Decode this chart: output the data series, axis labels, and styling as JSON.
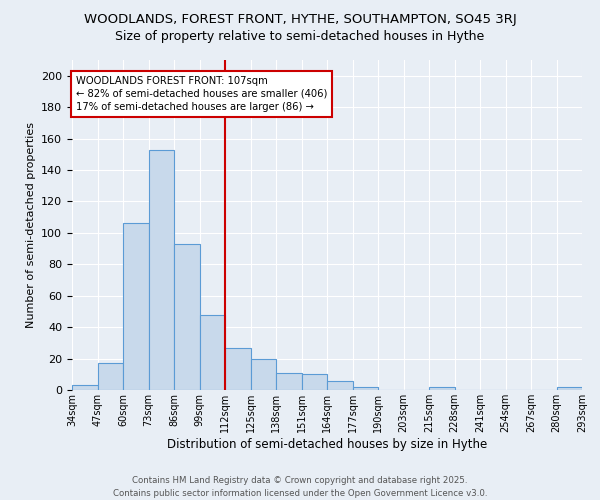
{
  "title": "WOODLANDS, FOREST FRONT, HYTHE, SOUTHAMPTON, SO45 3RJ",
  "subtitle": "Size of property relative to semi-detached houses in Hythe",
  "xlabel": "Distribution of semi-detached houses by size in Hythe",
  "ylabel": "Number of semi-detached properties",
  "footnote": "Contains HM Land Registry data © Crown copyright and database right 2025.\nContains public sector information licensed under the Open Government Licence v3.0.",
  "bin_labels": [
    "34sqm",
    "47sqm",
    "60sqm",
    "73sqm",
    "86sqm",
    "99sqm",
    "112sqm",
    "125sqm",
    "138sqm",
    "151sqm",
    "164sqm",
    "177sqm",
    "190sqm",
    "203sqm",
    "215sqm",
    "228sqm",
    "241sqm",
    "254sqm",
    "267sqm",
    "280sqm",
    "293sqm"
  ],
  "bar_values": [
    3,
    17,
    106,
    153,
    93,
    48,
    27,
    20,
    11,
    10,
    6,
    2,
    0,
    0,
    2,
    0,
    0,
    0,
    0,
    2
  ],
  "bar_color": "#c8d9eb",
  "bar_edge_color": "#5b9bd5",
  "property_label": "WOODLANDS FOREST FRONT: 107sqm",
  "pct_smaller": 82,
  "count_smaller": 406,
  "pct_larger": 17,
  "count_larger": 86,
  "vline_color": "#cc0000",
  "vline_x": 6.0,
  "annotation_box_color": "#cc0000",
  "ylim": [
    0,
    210
  ],
  "yticks": [
    0,
    20,
    40,
    60,
    80,
    100,
    120,
    140,
    160,
    180,
    200
  ],
  "background_color": "#e8eef5",
  "plot_background": "#e8eef5",
  "grid_color": "#ffffff",
  "title_fontsize": 9.5,
  "subtitle_fontsize": 9
}
